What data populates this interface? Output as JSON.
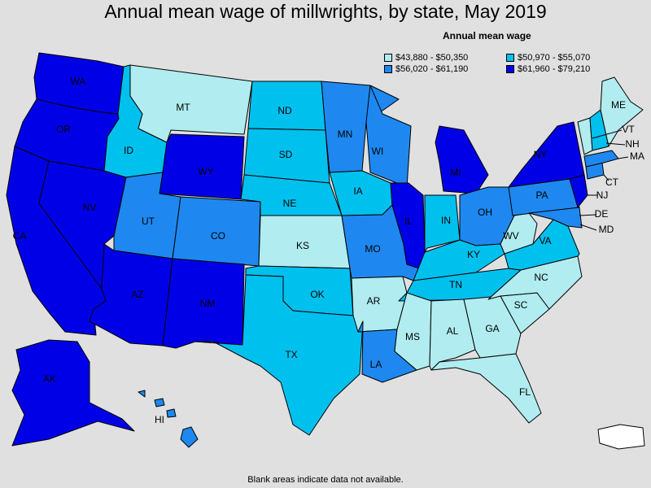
{
  "title": "Annual mean wage of millwrights, by state, May 2019",
  "legend": {
    "title": "Annual mean wage",
    "items": [
      {
        "label": "$43,880 - $50,350",
        "color": "#b0ecf0"
      },
      {
        "label": "$50,970 - $55,070",
        "color": "#00c0ee"
      },
      {
        "label": "$56,020 - $61,190",
        "color": "#1e88f0"
      },
      {
        "label": "$61,960 - $79,210",
        "color": "#0000e6"
      }
    ]
  },
  "footnote": "Blank areas indicate data not available.",
  "colors": {
    "background": "#e0e0e0",
    "nodata": "#ffffff",
    "border": "#000000"
  },
  "map_data": {
    "states": [
      {
        "abbr": "WA",
        "tier": 4
      },
      {
        "abbr": "OR",
        "tier": 4
      },
      {
        "abbr": "CA",
        "tier": 4
      },
      {
        "abbr": "NV",
        "tier": 4
      },
      {
        "abbr": "ID",
        "tier": 2
      },
      {
        "abbr": "MT",
        "tier": 1
      },
      {
        "abbr": "WY",
        "tier": 4
      },
      {
        "abbr": "UT",
        "tier": 3
      },
      {
        "abbr": "CO",
        "tier": 3
      },
      {
        "abbr": "AZ",
        "tier": 4
      },
      {
        "abbr": "NM",
        "tier": 4
      },
      {
        "abbr": "ND",
        "tier": 2
      },
      {
        "abbr": "SD",
        "tier": 2
      },
      {
        "abbr": "NE",
        "tier": 2
      },
      {
        "abbr": "KS",
        "tier": 1
      },
      {
        "abbr": "OK",
        "tier": 2
      },
      {
        "abbr": "TX",
        "tier": 2
      },
      {
        "abbr": "MN",
        "tier": 3
      },
      {
        "abbr": "IA",
        "tier": 2
      },
      {
        "abbr": "MO",
        "tier": 3
      },
      {
        "abbr": "AR",
        "tier": 1
      },
      {
        "abbr": "LA",
        "tier": 3
      },
      {
        "abbr": "WI",
        "tier": 3
      },
      {
        "abbr": "IL",
        "tier": 4
      },
      {
        "abbr": "MI",
        "tier": 4
      },
      {
        "abbr": "IN",
        "tier": 2
      },
      {
        "abbr": "OH",
        "tier": 3
      },
      {
        "abbr": "KY",
        "tier": 2
      },
      {
        "abbr": "TN",
        "tier": 2
      },
      {
        "abbr": "MS",
        "tier": 1
      },
      {
        "abbr": "AL",
        "tier": 1
      },
      {
        "abbr": "GA",
        "tier": 1
      },
      {
        "abbr": "FL",
        "tier": 1
      },
      {
        "abbr": "SC",
        "tier": 1
      },
      {
        "abbr": "NC",
        "tier": 1
      },
      {
        "abbr": "VA",
        "tier": 2
      },
      {
        "abbr": "WV",
        "tier": 1
      },
      {
        "abbr": "PA",
        "tier": 3
      },
      {
        "abbr": "NY",
        "tier": 4
      },
      {
        "abbr": "NJ",
        "tier": 4
      },
      {
        "abbr": "DE",
        "tier": 4
      },
      {
        "abbr": "MD",
        "tier": 3
      },
      {
        "abbr": "CT",
        "tier": 3
      },
      {
        "abbr": "MA",
        "tier": 3
      },
      {
        "abbr": "VT",
        "tier": 1
      },
      {
        "abbr": "NH",
        "tier": 2
      },
      {
        "abbr": "ME",
        "tier": 1
      },
      {
        "abbr": "AK",
        "tier": 4
      },
      {
        "abbr": "HI",
        "tier": 3
      }
    ]
  }
}
